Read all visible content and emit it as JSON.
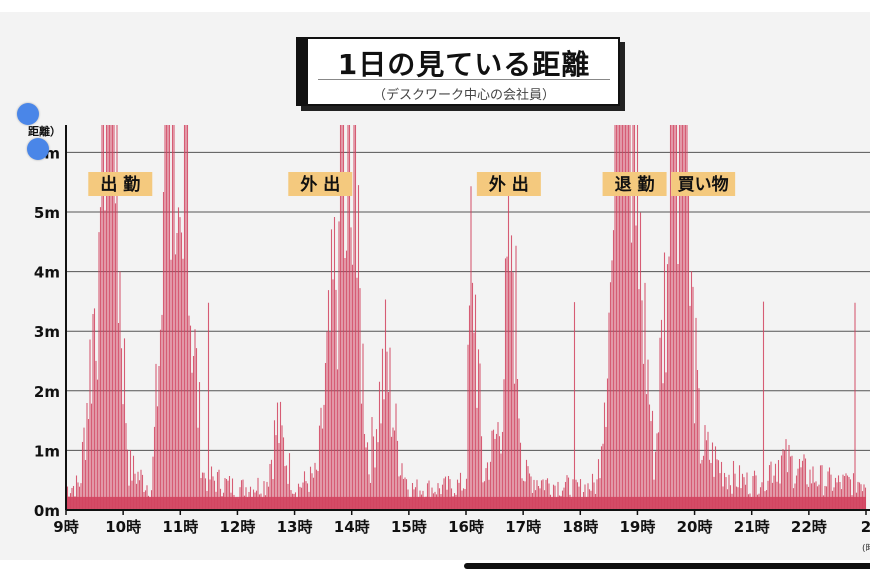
{
  "chart_data": {
    "type": "area",
    "title": "1日の見ている距離",
    "subtitle": "（デスクワーク中心の会社員）",
    "ylabel": "距離）",
    "ylim": [
      0,
      6.5
    ],
    "y_ticks": [
      "0m",
      "1m",
      "2m",
      "3m",
      "4m",
      "5m",
      "m"
    ],
    "y_tick_values": [
      0,
      1,
      2,
      3,
      4,
      5,
      6
    ],
    "xlim": [
      9,
      23
    ],
    "x_ticks": [
      "9時",
      "10時",
      "11時",
      "12時",
      "13時",
      "14時",
      "15時",
      "16時",
      "17時",
      "18時",
      "19時",
      "20時",
      "21時",
      "22時",
      "2"
    ],
    "x_tick_values": [
      9,
      10,
      11,
      12,
      13,
      14,
      15,
      16,
      17,
      18,
      19,
      20,
      21,
      22,
      23
    ],
    "x_unit_note": "(時",
    "grid": true,
    "colors": {
      "series": "#d2425f",
      "label_bg": "#f4c97e",
      "grid": "#555555"
    },
    "annotations": [
      {
        "text": "出 勤",
        "x": 9.95
      },
      {
        "text": "外 出",
        "x": 13.45
      },
      {
        "text": "外 出",
        "x": 16.75
      },
      {
        "text": "退 勤",
        "x": 18.95
      },
      {
        "text": "買い物",
        "x": 20.15
      }
    ],
    "series": [
      {
        "values": [
          {
            "x": 9.0,
            "y": 0.5
          },
          {
            "x": 9.25,
            "y": 0.6
          },
          {
            "x": 9.4,
            "y": 3.0
          },
          {
            "x": 9.6,
            "y": 6.5
          },
          {
            "x": 9.9,
            "y": 6.5
          },
          {
            "x": 10.1,
            "y": 1.0
          },
          {
            "x": 10.5,
            "y": 0.5
          },
          {
            "x": 10.75,
            "y": 6.5
          },
          {
            "x": 11.1,
            "y": 6.5
          },
          {
            "x": 11.4,
            "y": 0.8
          },
          {
            "x": 12.0,
            "y": 0.5
          },
          {
            "x": 12.5,
            "y": 0.6
          },
          {
            "x": 12.7,
            "y": 2.0
          },
          {
            "x": 13.0,
            "y": 0.5
          },
          {
            "x": 13.4,
            "y": 0.8
          },
          {
            "x": 13.8,
            "y": 6.5
          },
          {
            "x": 14.05,
            "y": 6.5
          },
          {
            "x": 14.3,
            "y": 1.0
          },
          {
            "x": 14.6,
            "y": 3.5
          },
          {
            "x": 14.8,
            "y": 1.5
          },
          {
            "x": 15.0,
            "y": 0.5
          },
          {
            "x": 15.5,
            "y": 0.5
          },
          {
            "x": 16.0,
            "y": 0.6
          },
          {
            "x": 16.1,
            "y": 6.5
          },
          {
            "x": 16.3,
            "y": 0.7
          },
          {
            "x": 16.6,
            "y": 2.0
          },
          {
            "x": 16.8,
            "y": 6.5
          },
          {
            "x": 17.0,
            "y": 0.8
          },
          {
            "x": 17.5,
            "y": 0.6
          },
          {
            "x": 18.0,
            "y": 0.5
          },
          {
            "x": 18.3,
            "y": 0.6
          },
          {
            "x": 18.6,
            "y": 6.5
          },
          {
            "x": 19.0,
            "y": 6.5
          },
          {
            "x": 19.3,
            "y": 1.0
          },
          {
            "x": 19.55,
            "y": 6.5
          },
          {
            "x": 19.85,
            "y": 6.5
          },
          {
            "x": 20.1,
            "y": 1.5
          },
          {
            "x": 20.6,
            "y": 0.8
          },
          {
            "x": 21.0,
            "y": 0.6
          },
          {
            "x": 21.5,
            "y": 1.2
          },
          {
            "x": 22.0,
            "y": 0.8
          },
          {
            "x": 22.5,
            "y": 0.6
          },
          {
            "x": 23.0,
            "y": 0.7
          }
        ]
      }
    ]
  }
}
